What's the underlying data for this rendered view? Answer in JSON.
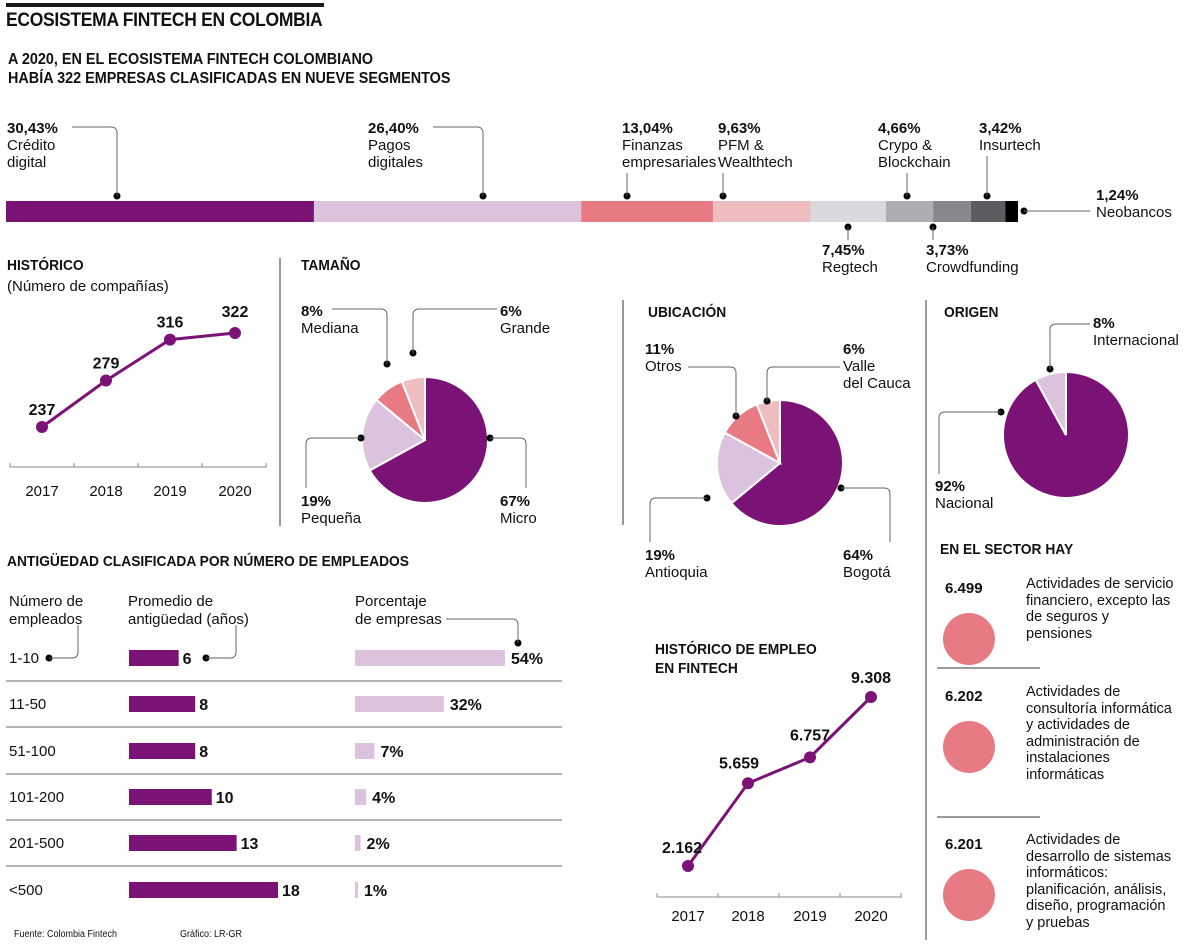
{
  "header": {
    "title": "ECOSISTEMA FINTECH EN COLOMBIA",
    "subtitle_line1": "A 2020, EN EL ECOSISTEMA FINTECH COLOMBIANO",
    "subtitle_line2": "HABÍA 322 EMPRESAS CLASIFICADAS EN NUEVE SEGMENTOS"
  },
  "colors": {
    "purple": "#7b1275",
    "lilac": "#dcc3dd",
    "coral": "#e87a84",
    "pink": "#efbcc0",
    "gray1": "#d9d9de",
    "gray2": "#adadb2",
    "gray3": "#88878c",
    "gray4": "#5d5c61",
    "black": "#000000"
  },
  "chart_data": [
    {
      "id": "segments",
      "type": "bar",
      "title": "A 2020, EN EL ECOSISTEMA FINTECH COLOMBIANO HABÍA 322 EMPRESAS CLASIFICADAS EN NUEVE SEGMENTOS",
      "stacked": true,
      "categories": [
        "Crédito digital",
        "Pagos digitales",
        "Finanzas empresariales",
        "PFM & Wealthtech",
        "Regtech",
        "Crypo & Blockchain",
        "Crowdfunding",
        "Insurtech",
        "Neobancos"
      ],
      "label_lines": [
        [
          "Crédito",
          "digital"
        ],
        [
          "Pagos",
          "digitales"
        ],
        [
          "Finanzas",
          "empresariales"
        ],
        [
          "PFM &",
          "Wealthtech"
        ],
        [
          "Regtech"
        ],
        [
          "Crypo &",
          "Blockchain"
        ],
        [
          "Crowdfunding"
        ],
        [
          "Insurtech"
        ],
        [
          "Neobancos"
        ]
      ],
      "values": [
        30.43,
        26.4,
        13.04,
        9.63,
        7.45,
        4.66,
        3.73,
        3.42,
        1.24
      ],
      "value_labels": [
        "30,43%",
        "26,40%",
        "13,04%",
        "9,63%",
        "7,45%",
        "4,66%",
        "3,73%",
        "3,42%",
        "1,24%"
      ],
      "unit": "%"
    },
    {
      "id": "historico",
      "type": "line",
      "title": "HISTÓRICO",
      "subtitle": "(Número de compañías)",
      "x": [
        "2017",
        "2018",
        "2019",
        "2020"
      ],
      "values": [
        237,
        279,
        316,
        322
      ],
      "value_labels": [
        "237",
        "279",
        "316",
        "322"
      ],
      "xlabel": "",
      "ylabel": ""
    },
    {
      "id": "tamano",
      "type": "pie",
      "title": "TAMAÑO",
      "categories": [
        "Micro",
        "Pequeña",
        "Mediana",
        "Grande"
      ],
      "values": [
        67,
        19,
        8,
        6
      ],
      "value_labels": [
        "67%",
        "19%",
        "8%",
        "6%"
      ]
    },
    {
      "id": "ubicacion",
      "type": "pie",
      "title": "UBICACIÓN",
      "categories": [
        "Bogotá",
        "Antioquia",
        "Otros",
        "Valle del Cauca"
      ],
      "label_lines": [
        [
          "Bogotá"
        ],
        [
          "Antioquia"
        ],
        [
          "Otros"
        ],
        [
          "Valle",
          "del Cauca"
        ]
      ],
      "values": [
        64,
        19,
        11,
        6
      ],
      "value_labels": [
        "64%",
        "19%",
        "11%",
        "6%"
      ]
    },
    {
      "id": "origen",
      "type": "pie",
      "title": "ORIGEN",
      "categories": [
        "Nacional",
        "Internacional"
      ],
      "values": [
        92,
        8
      ],
      "value_labels": [
        "92%",
        "8%"
      ]
    },
    {
      "id": "antiguedad",
      "type": "table",
      "title": "ANTIGÜEDAD CLASIFICADA POR NÚMERO DE EMPLEADOS",
      "columns": [
        "Número de empleados",
        "Promedio de antigüedad (años)",
        "Porcentaje de empresas"
      ],
      "column_lines": [
        [
          "Número de",
          "empleados"
        ],
        [
          "Promedio de",
          "antigüedad (años)"
        ],
        [
          "Porcentaje",
          "de empresas"
        ]
      ],
      "rows": [
        {
          "range": "1-10",
          "years": 6,
          "percent": 54,
          "percent_label": "54%"
        },
        {
          "range": "11-50",
          "years": 8,
          "percent": 32,
          "percent_label": "32%"
        },
        {
          "range": "51-100",
          "years": 8,
          "percent": 7,
          "percent_label": "7%"
        },
        {
          "range": "101-200",
          "years": 10,
          "percent": 4,
          "percent_label": "4%"
        },
        {
          "range": "201-500",
          "years": 13,
          "percent": 2,
          "percent_label": "2%"
        },
        {
          "range": "<500",
          "years": 18,
          "percent": 1,
          "percent_label": "1%"
        }
      ]
    },
    {
      "id": "empleo",
      "type": "line",
      "title": "HISTÓRICO DE EMPLEO EN FINTECH",
      "title_lines": [
        "HISTÓRICO DE EMPLEO",
        "EN FINTECH"
      ],
      "x": [
        "2017",
        "2018",
        "2019",
        "2020"
      ],
      "values": [
        2162,
        5659,
        6757,
        9308
      ],
      "value_labels": [
        "2.162",
        "5.659",
        "6.757",
        "9.308"
      ],
      "xlabel": "",
      "ylabel": ""
    }
  ],
  "sector": {
    "title": "EN EL SECTOR HAY",
    "items": [
      {
        "value": "6.499",
        "lines": [
          "Actividades de servicio",
          "financiero, excepto las",
          "de seguros y",
          "pensiones"
        ]
      },
      {
        "value": "6.202",
        "lines": [
          "Actividades de",
          "consultoría informática",
          "y actividades de",
          "administración de",
          "instalaciones",
          "informáticas"
        ]
      },
      {
        "value": "6.201",
        "lines": [
          "Actividades de",
          "desarrollo de sistemas",
          "informáticos:",
          "planificación, análisis,",
          "diseño, programación",
          "y pruebas"
        ]
      }
    ]
  },
  "footer": {
    "source": "Fuente: Colombia Fintech",
    "credit": "Gráfico: LR-GR"
  }
}
